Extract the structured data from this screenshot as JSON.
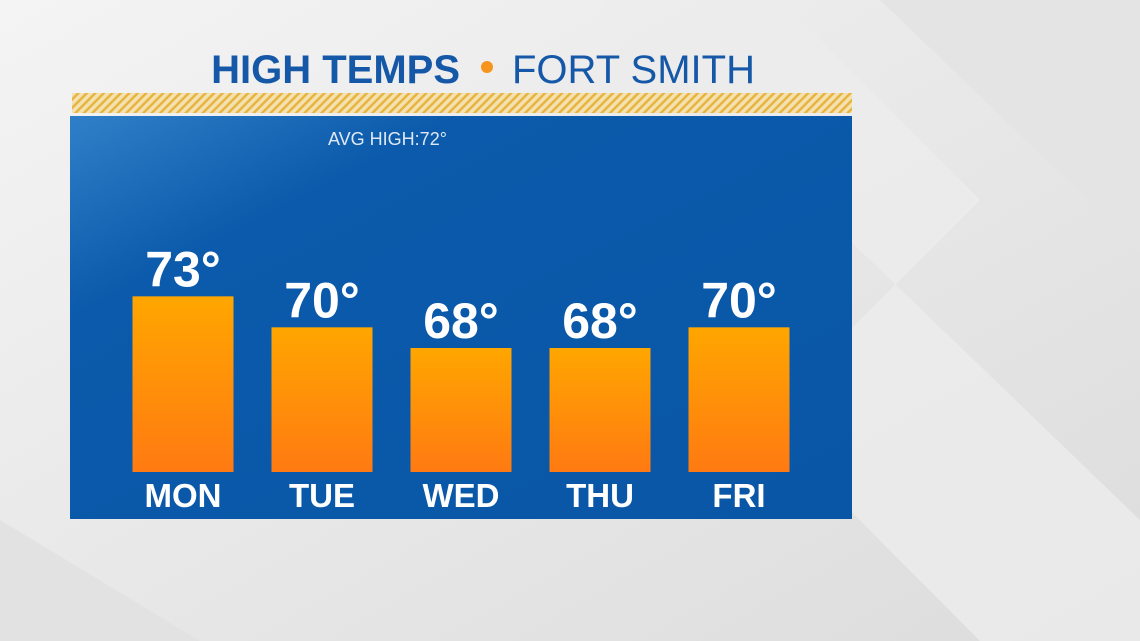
{
  "chart_data": {
    "type": "bar",
    "title": "HIGH TEMPS",
    "subtitle": "FORT SMITH",
    "annotation": "AVG HIGH:72°",
    "categories": [
      "MON",
      "TUE",
      "WED",
      "THU",
      "FRI"
    ],
    "values": [
      73,
      70,
      68,
      68,
      70
    ],
    "value_labels": [
      "73°",
      "70°",
      "68°",
      "68°",
      "70°"
    ],
    "color": "#ff9000",
    "ylim": [
      56,
      80
    ]
  }
}
